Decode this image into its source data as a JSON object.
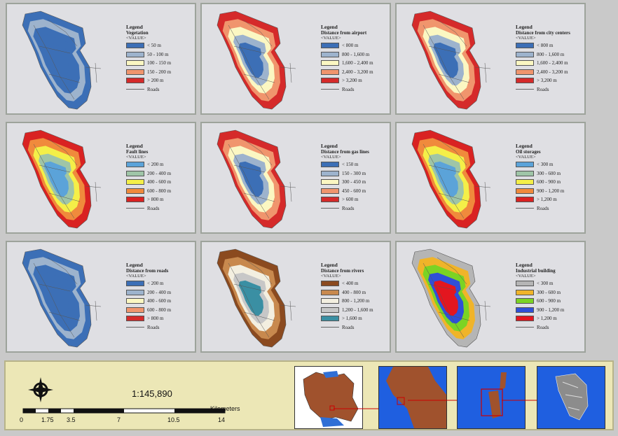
{
  "panels": [
    {
      "title": "Vegetation",
      "value_label": "<VALUE>",
      "legend_heading": "Legend",
      "roads_label": "Roads",
      "classes": [
        {
          "label": "< 50 m",
          "color": "#3c6fb6"
        },
        {
          "label": "50 - 100 m",
          "color": "#9db3cd"
        },
        {
          "label": "100 - 150 m",
          "color": "#fbf7c2"
        },
        {
          "label": "150 - 200 m",
          "color": "#f0956d"
        },
        {
          "label": "> 200 m",
          "color": "#d52a2a"
        }
      ]
    },
    {
      "title": "Distance from airport",
      "value_label": "<VALUE>",
      "legend_heading": "Legend",
      "roads_label": "Roads",
      "classes": [
        {
          "label": "< 800 m",
          "color": "#3c6fb6"
        },
        {
          "label": "800 - 1,600 m",
          "color": "#9db3cd"
        },
        {
          "label": "1,600 - 2,400 m",
          "color": "#fbf7c2"
        },
        {
          "label": "2,400 - 3,200 m",
          "color": "#f0956d"
        },
        {
          "label": "> 3,200 m",
          "color": "#d52a2a"
        }
      ]
    },
    {
      "title": "Distance from city centers",
      "value_label": "<VALUE>",
      "legend_heading": "Legend",
      "roads_label": "Roads",
      "classes": [
        {
          "label": "< 800 m",
          "color": "#3c6fb6"
        },
        {
          "label": "800 - 1,600 m",
          "color": "#9db3cd"
        },
        {
          "label": "1,600 - 2,400 m",
          "color": "#fbf7c2"
        },
        {
          "label": "2,400 - 3,200 m",
          "color": "#f0956d"
        },
        {
          "label": "> 3,200 m",
          "color": "#d52a2a"
        }
      ]
    },
    {
      "title": "Fault lines",
      "value_label": "<VALUE>",
      "legend_heading": "Legend",
      "roads_label": "Roads",
      "classes": [
        {
          "label": "< 200 m",
          "color": "#5ba3d9"
        },
        {
          "label": "200 - 400 m",
          "color": "#9fc5a7"
        },
        {
          "label": "400 - 600 m",
          "color": "#f4ef48"
        },
        {
          "label": "600 - 800 m",
          "color": "#f08a3c"
        },
        {
          "label": "> 800 m",
          "color": "#d92222"
        }
      ]
    },
    {
      "title": "Distance from gas lines",
      "value_label": "<VALUE>",
      "legend_heading": "Legend",
      "roads_label": "Roads",
      "classes": [
        {
          "label": "< 150 m",
          "color": "#3c6fb6"
        },
        {
          "label": "150 - 300 m",
          "color": "#9db3cd"
        },
        {
          "label": "300 - 450 m",
          "color": "#fbf7c2"
        },
        {
          "label": "450 - 600 m",
          "color": "#f0956d"
        },
        {
          "label": "> 600 m",
          "color": "#d52a2a"
        }
      ]
    },
    {
      "title": "Oil storages",
      "value_label": "<VALUE>",
      "legend_heading": "Legend",
      "roads_label": "Roads",
      "classes": [
        {
          "label": "< 300 m",
          "color": "#5ba3d9"
        },
        {
          "label": "300 - 600 m",
          "color": "#9fc5a7"
        },
        {
          "label": "600 - 900 m",
          "color": "#f4ef48"
        },
        {
          "label": "900 - 1,200 m",
          "color": "#f08a3c"
        },
        {
          "label": "> 1,200 m",
          "color": "#d92222"
        }
      ]
    },
    {
      "title": "Distance from roads",
      "value_label": "<VALUE>",
      "legend_heading": "Legend",
      "roads_label": "Roads",
      "classes": [
        {
          "label": "< 200 m",
          "color": "#3c6fb6"
        },
        {
          "label": "200 - 400 m",
          "color": "#9db3cd"
        },
        {
          "label": "400 - 600 m",
          "color": "#fbf7c2"
        },
        {
          "label": "600 - 800 m",
          "color": "#f0956d"
        },
        {
          "label": "> 800 m",
          "color": "#d52a2a"
        }
      ]
    },
    {
      "title": "Distance from rivers",
      "value_label": "<VALUE>",
      "legend_heading": "Legend",
      "roads_label": "Roads",
      "classes": [
        {
          "label": "< 400 m",
          "color": "#8b4a1f"
        },
        {
          "label": "400 - 800 m",
          "color": "#c8894e"
        },
        {
          "label": "800 - 1,200 m",
          "color": "#f3efe0"
        },
        {
          "label": "1,200 - 1,600 m",
          "color": "#c7c7c7"
        },
        {
          "label": "> 1,600 m",
          "color": "#3a8fa3"
        }
      ]
    },
    {
      "title": "Industrial building",
      "value_label": "<VALUE>",
      "legend_heading": "Legend",
      "roads_label": "Roads",
      "classes": [
        {
          "label": "< 300 m",
          "color": "#b5b5b5"
        },
        {
          "label": "300 - 600 m",
          "color": "#f0b429"
        },
        {
          "label": "600 - 900 m",
          "color": "#7bd324"
        },
        {
          "label": "900 - 1,200 m",
          "color": "#2f4fd8"
        },
        {
          "label": "> 1,200 m",
          "color": "#e3161f"
        }
      ]
    }
  ],
  "scale": {
    "ratio": "1:145,890",
    "unit": "Kilometers",
    "ticks": [
      "0",
      "1.75",
      "3.5",
      "7",
      "10.5",
      "14"
    ]
  },
  "north_arrow": "north-arrow-icon"
}
